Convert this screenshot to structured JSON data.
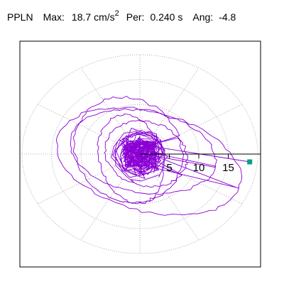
{
  "header": {
    "station": "PPLN",
    "max_label": "Max:",
    "max_value": "18.7",
    "max_unit": "cm/s",
    "max_unit_exp": "2",
    "period_label": "Per:",
    "period_value": "0.240 s",
    "angle_label": "Ang:",
    "angle_value": "-4.8"
  },
  "chart_data": {
    "type": "polar-particle-motion",
    "radial_ticks": [
      5,
      10,
      15
    ],
    "radial_tick_labels": [
      "5",
      "10",
      "15"
    ],
    "rmax": 20,
    "grid": true,
    "max_value": 18.7,
    "angle_deg": -4.8,
    "marker_color": "#00a080",
    "trace_color": "#8a00d4"
  }
}
